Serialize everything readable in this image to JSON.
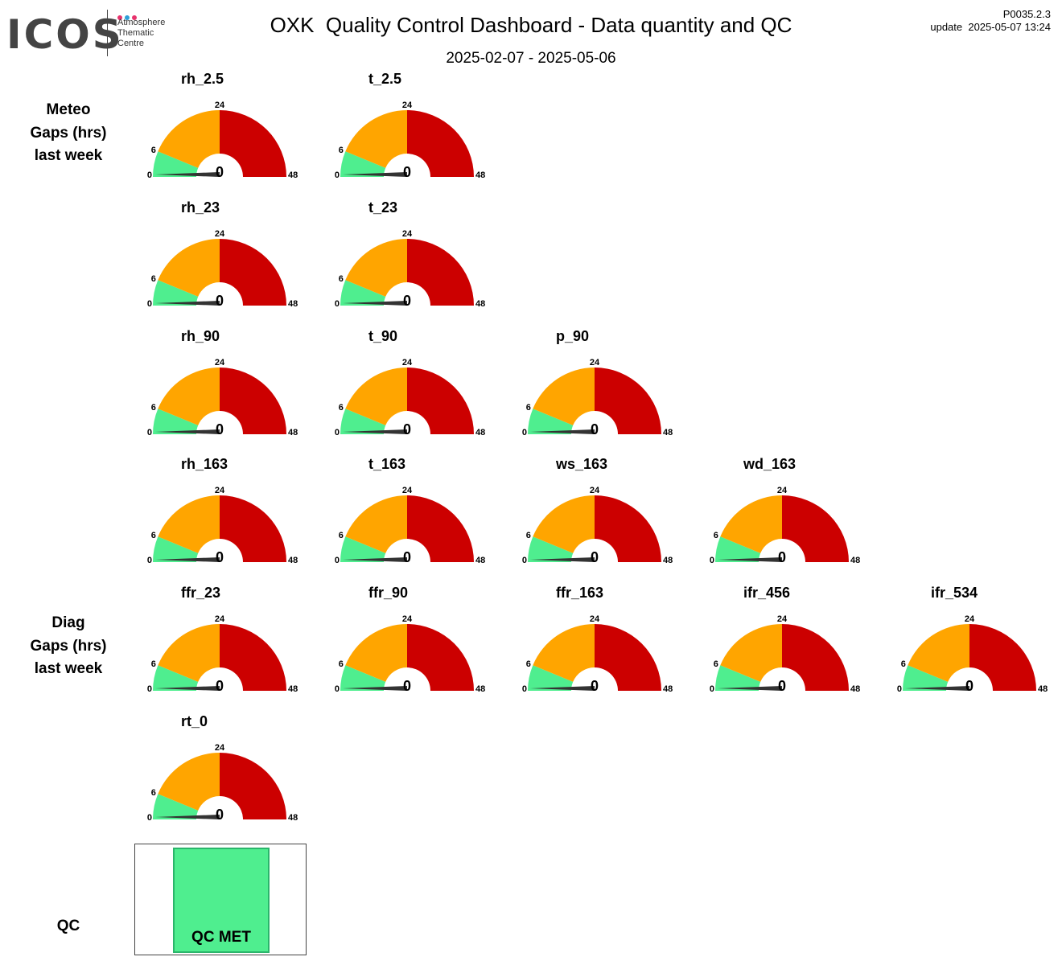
{
  "header": {
    "logo_text": "ICOS",
    "logo_lines": [
      "Atmosphere",
      "Thematic",
      "Centre"
    ],
    "title": "OXK  Quality Control Dashboard - Data quantity and QC",
    "date_range": "2025-02-07 - 2025-05-06",
    "version": "P0035.2.3",
    "update": "update  2025-05-07 13:24"
  },
  "sections": {
    "meteo": [
      "Meteo",
      "Gaps (hrs)",
      "last week"
    ],
    "diag": [
      "Diag",
      "Gaps (hrs)",
      "last week"
    ],
    "qc": "QC"
  },
  "colors": {
    "green": "#4fee8f",
    "orange": "#ffa500",
    "red": "#cc0000",
    "needle": "#333333",
    "logo_dots": [
      "#e8336d",
      "#2e9fd8",
      "#e8336d"
    ]
  },
  "chart_data": {
    "type": "gauge",
    "range": [
      0,
      48
    ],
    "bands": [
      {
        "from": 0,
        "to": 6,
        "color": "green"
      },
      {
        "from": 6,
        "to": 24,
        "color": "orange"
      },
      {
        "from": 24,
        "to": 48,
        "color": "red"
      }
    ],
    "tick_labels": [
      "0",
      "6",
      "24",
      "48"
    ],
    "rows": [
      [
        {
          "name": "rh_2.5",
          "value": 0
        },
        {
          "name": "t_2.5",
          "value": 0
        }
      ],
      [
        {
          "name": "rh_23",
          "value": 0
        },
        {
          "name": "t_23",
          "value": 0
        }
      ],
      [
        {
          "name": "rh_90",
          "value": 0
        },
        {
          "name": "t_90",
          "value": 0
        },
        {
          "name": "p_90",
          "value": 0
        }
      ],
      [
        {
          "name": "rh_163",
          "value": 0
        },
        {
          "name": "t_163",
          "value": 0
        },
        {
          "name": "ws_163",
          "value": 0
        },
        {
          "name": "wd_163",
          "value": 0
        }
      ],
      [
        {
          "name": "ffr_23",
          "value": 0
        },
        {
          "name": "ffr_90",
          "value": 0
        },
        {
          "name": "ffr_163",
          "value": 0
        },
        {
          "name": "ifr_456",
          "value": 0
        },
        {
          "name": "ifr_534",
          "value": 0
        }
      ],
      [
        {
          "name": "rt_0",
          "value": 0
        }
      ]
    ]
  },
  "qc": {
    "status": "QC MET",
    "color": "#4fee8f"
  }
}
